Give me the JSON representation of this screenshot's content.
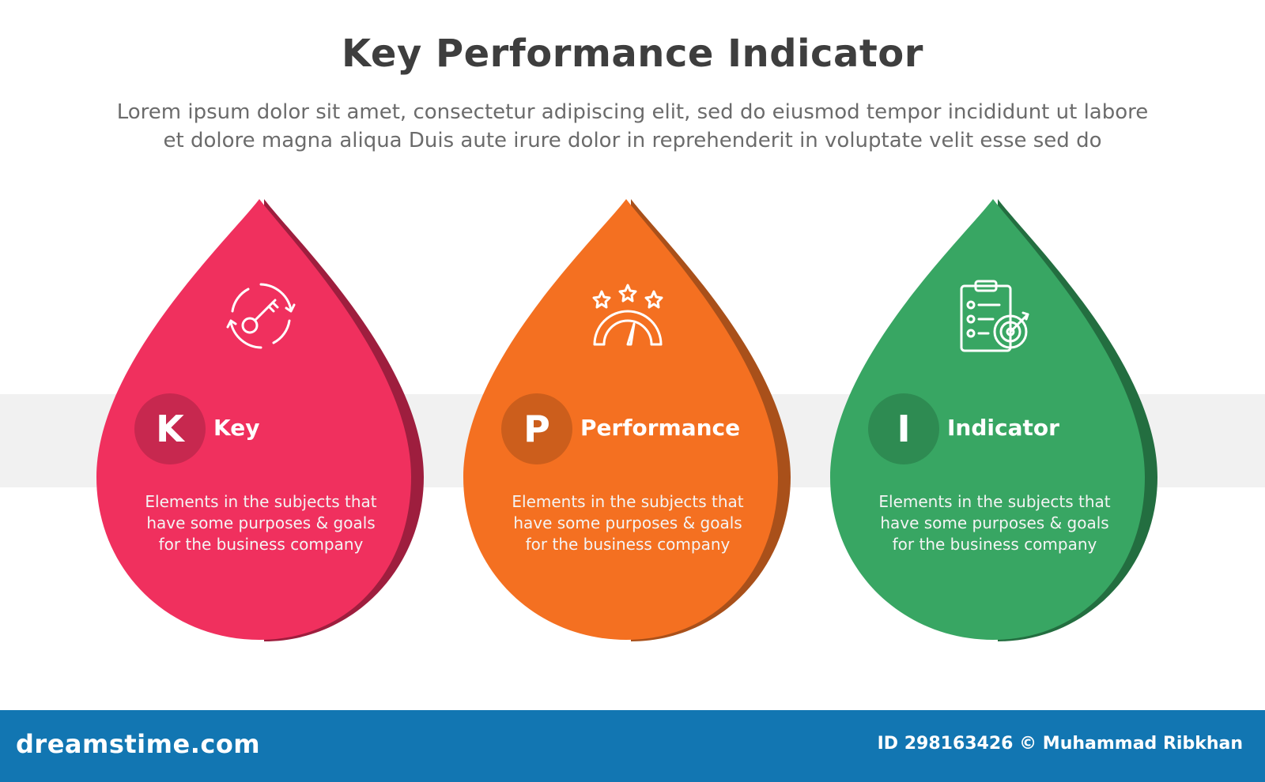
{
  "header": {
    "title": "Key Performance Indicator",
    "subtitle_line1": "Lorem ipsum dolor sit amet, consectetur adipiscing elit, sed do eiusmod tempor incididunt ut labore",
    "subtitle_line2": "et dolore magna aliqua Duis aute irure dolor in reprehenderit in voluptate velit esse sed do"
  },
  "items": [
    {
      "letter": "K",
      "label": "Key",
      "icon": "key-cycle-icon",
      "color": "#f0305e",
      "shade": "#9e1e3e",
      "circle": "#c7284f",
      "desc_line1": "Elements in the subjects that",
      "desc_line2": "have  some purposes & goals",
      "desc_line3": "for the  business company"
    },
    {
      "letter": "P",
      "label": "Performance",
      "icon": "rating-gauge-icon",
      "color": "#f47021",
      "shade": "#a9501a",
      "circle": "#cc5e1c",
      "desc_line1": "Elements in the subjects that",
      "desc_line2": "have  some purposes & goals",
      "desc_line3": "for the  business company"
    },
    {
      "letter": "I",
      "label": "Indicator",
      "icon": "clipboard-target-icon",
      "color": "#38a663",
      "shade": "#236e40",
      "circle": "#2e8b52",
      "desc_line1": "Elements in the subjects that",
      "desc_line2": "have  some purposes & goals",
      "desc_line3": "for the  business company"
    }
  ],
  "footer": {
    "brand": "dreamstime.com",
    "credit": "ID 298163426 © Muhammad Ribkhan",
    "color": "#1276b2"
  }
}
